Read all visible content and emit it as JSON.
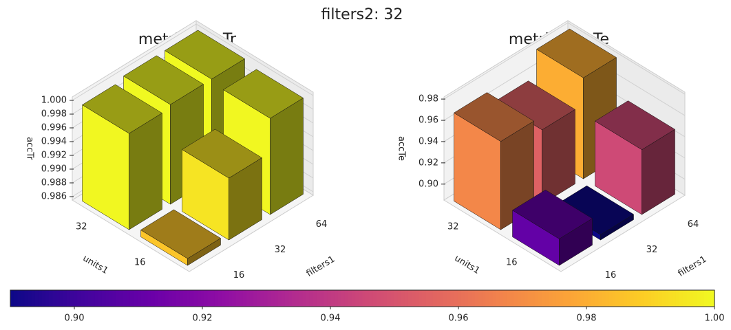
{
  "title": "filters2: 32",
  "chart_data": [
    {
      "type": "bar3d",
      "title": "metric: accTr",
      "x_label": "filters1",
      "y_label": "units1",
      "z_label": "accTr",
      "xcategories": [
        16,
        32,
        64
      ],
      "ycategories": [
        16,
        32
      ],
      "values": [
        [
          0.9865,
          0.9995
        ],
        [
          0.9945,
          1.0
        ],
        [
          0.9995,
          1.0
        ]
      ],
      "zlim": [
        0.9855,
        1.0005
      ],
      "zticks": [
        0.986,
        0.988,
        {
          "value": 0.99,
          "label": "0.990"
        },
        0.992,
        0.994,
        0.996,
        0.998,
        {
          "value": 1.0,
          "label": "1.000"
        }
      ],
      "colormap": "plasma",
      "grid": true
    },
    {
      "type": "bar3d",
      "title": "metric: accTe",
      "x_label": "filters1",
      "y_label": "units1",
      "z_label": "accTe",
      "xcategories": [
        16,
        32,
        64
      ],
      "ycategories": [
        16,
        32
      ],
      "values": [
        [
          0.91,
          0.968
        ],
        [
          0.89,
          0.955
        ],
        [
          0.946,
          0.98
        ]
      ],
      "zlim": [
        0.885,
        0.982
      ],
      "zticks": [
        {
          "value": 0.9,
          "label": "0.90"
        },
        0.92,
        0.94,
        0.96,
        0.98
      ],
      "colormap": "plasma",
      "grid": true
    }
  ],
  "colorbar": {
    "colormap": "plasma",
    "clim": [
      0.89,
      1.0
    ],
    "ticks": [
      {
        "value": 0.9,
        "label": "0.90"
      },
      0.92,
      0.94,
      0.96,
      0.98,
      {
        "value": 1.0,
        "label": "1.00"
      }
    ]
  }
}
